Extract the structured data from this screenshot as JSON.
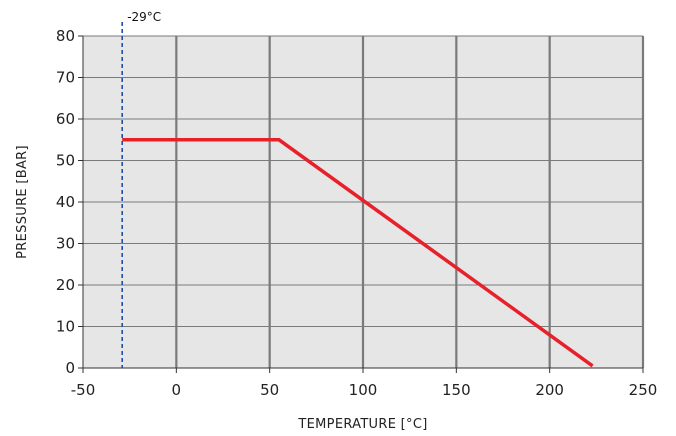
{
  "chart_data": {
    "type": "line",
    "title": "",
    "xlabel": "TEMPERATURE [°C]",
    "ylabel": "PRESSURE [BAR]",
    "xlim": [
      -50,
      250
    ],
    "ylim": [
      0,
      80
    ],
    "x_ticks": [
      -50,
      0,
      50,
      100,
      150,
      200,
      250
    ],
    "y_ticks": [
      0,
      10,
      20,
      30,
      40,
      50,
      60,
      70,
      80
    ],
    "grid": true,
    "legend": "none",
    "series": [
      {
        "x": [
          -29,
          55,
          223
        ],
        "y": [
          55,
          55,
          0.5
        ],
        "color": "#e8202a"
      }
    ],
    "annotations": [
      {
        "type": "vertical-line",
        "x": -29,
        "label": "-29°C",
        "style": "dashed",
        "color": "#1f4fa8"
      }
    ],
    "colors": {
      "plot_background": "#e6e6e6",
      "grid_line": "#7a7a7a",
      "axis_line": "#333333"
    }
  }
}
